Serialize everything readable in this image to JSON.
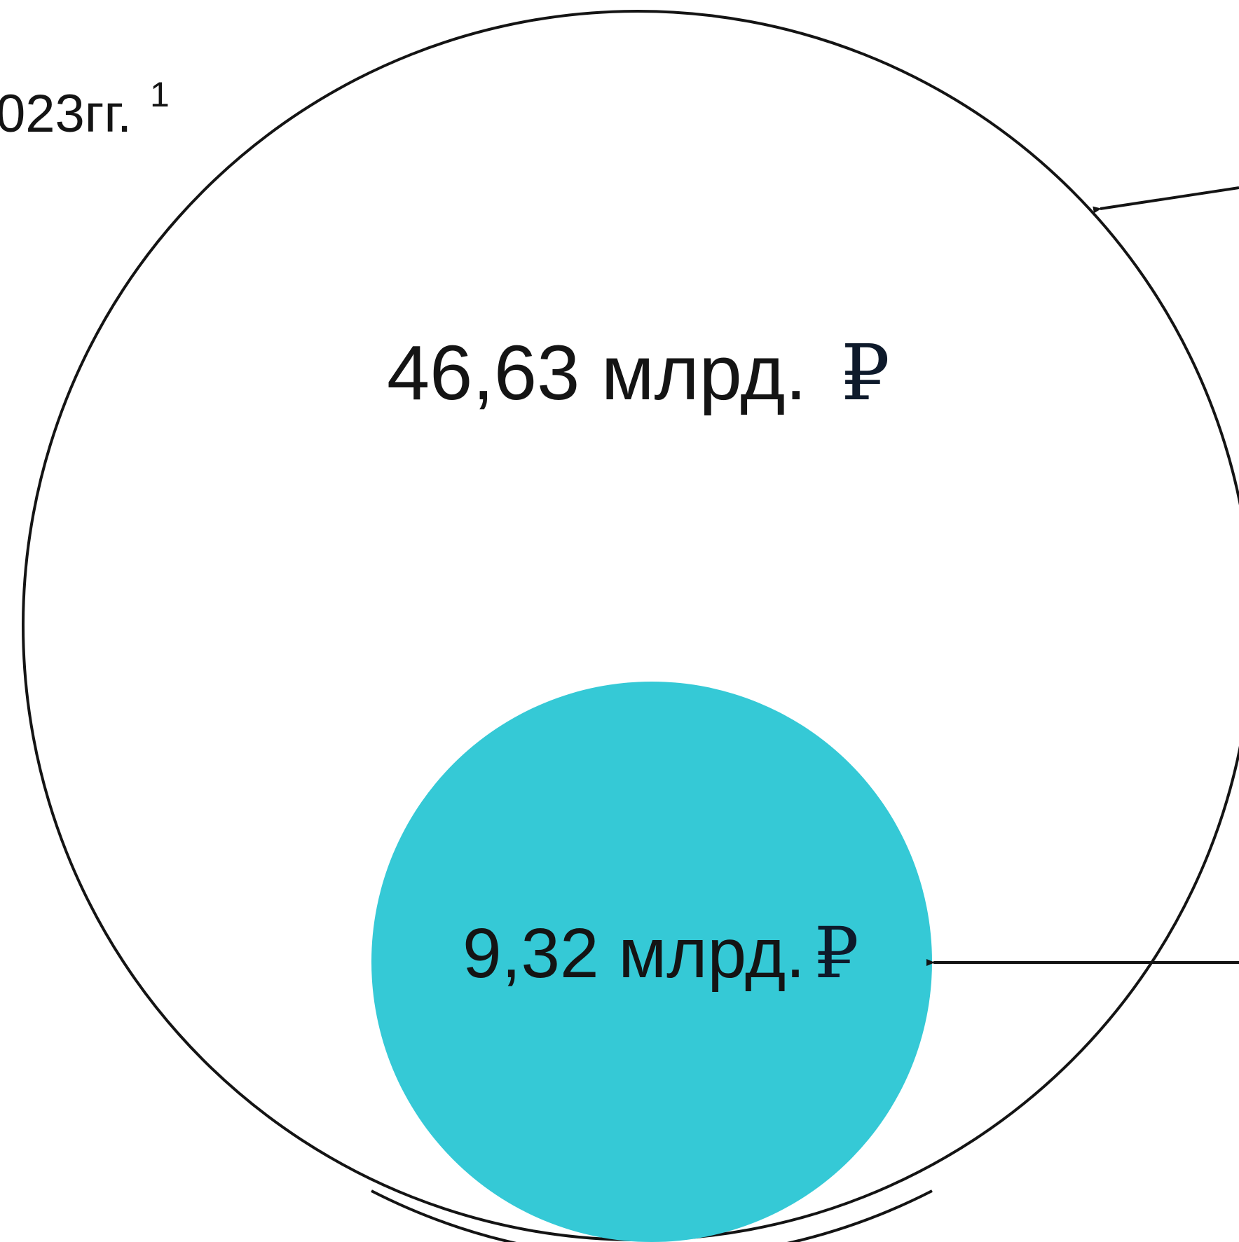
{
  "diagram": {
    "period_label": {
      "text": "023гг.",
      "superscript": "1"
    },
    "outer_circle": {
      "value_text": "46,63 млрд.",
      "currency_symbol": "₽"
    },
    "inner_circle": {
      "value_text": "9,32 млрд.",
      "currency_symbol": "₽"
    }
  },
  "colors": {
    "inner_fill": "#35c9d6",
    "outline": "#141414",
    "text": "#141414"
  }
}
